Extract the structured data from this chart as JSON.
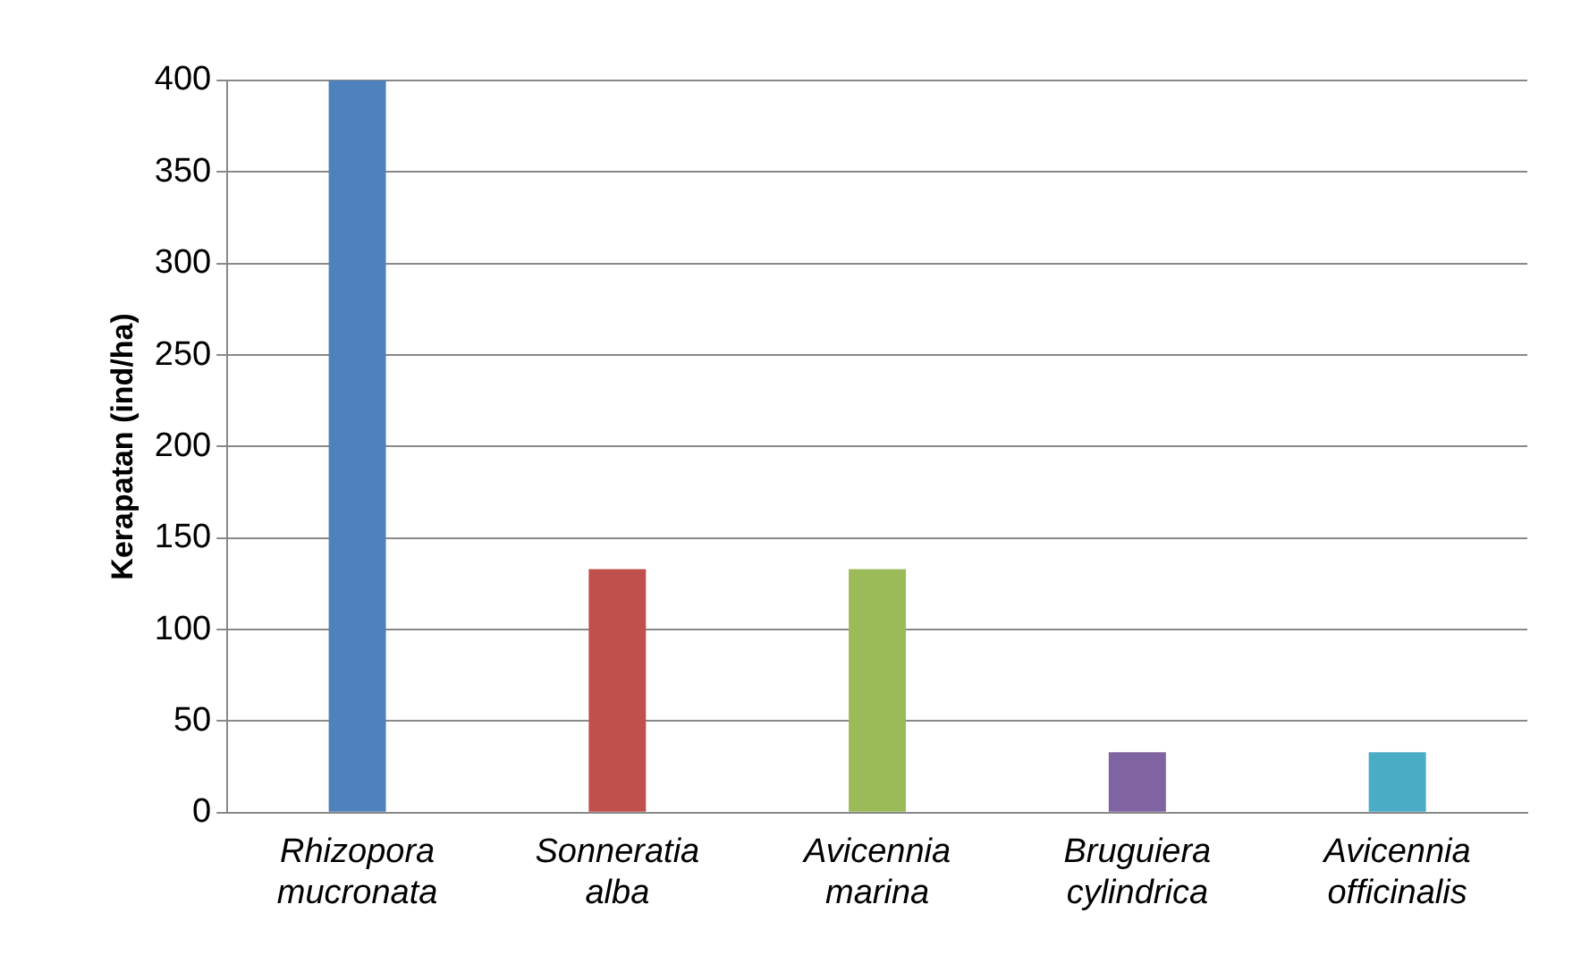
{
  "chart_data": {
    "type": "bar",
    "ylabel": "Kerapatan (ind/ha)",
    "categories": [
      "Rhizopora mucronata",
      "Sonneratia alba",
      "Avicennia marina",
      "Bruguiera cylindrica",
      "Avicennia officinalis"
    ],
    "values": [
      400,
      133,
      133,
      33,
      33
    ],
    "colors": [
      "#4f81bd",
      "#c0504d",
      "#9bbb59",
      "#8064a2",
      "#4bacc6"
    ],
    "ylim": [
      0,
      400
    ],
    "yticks": [
      0,
      50,
      100,
      150,
      200,
      250,
      300,
      350,
      400
    ],
    "grid": "y",
    "legend": false
  }
}
